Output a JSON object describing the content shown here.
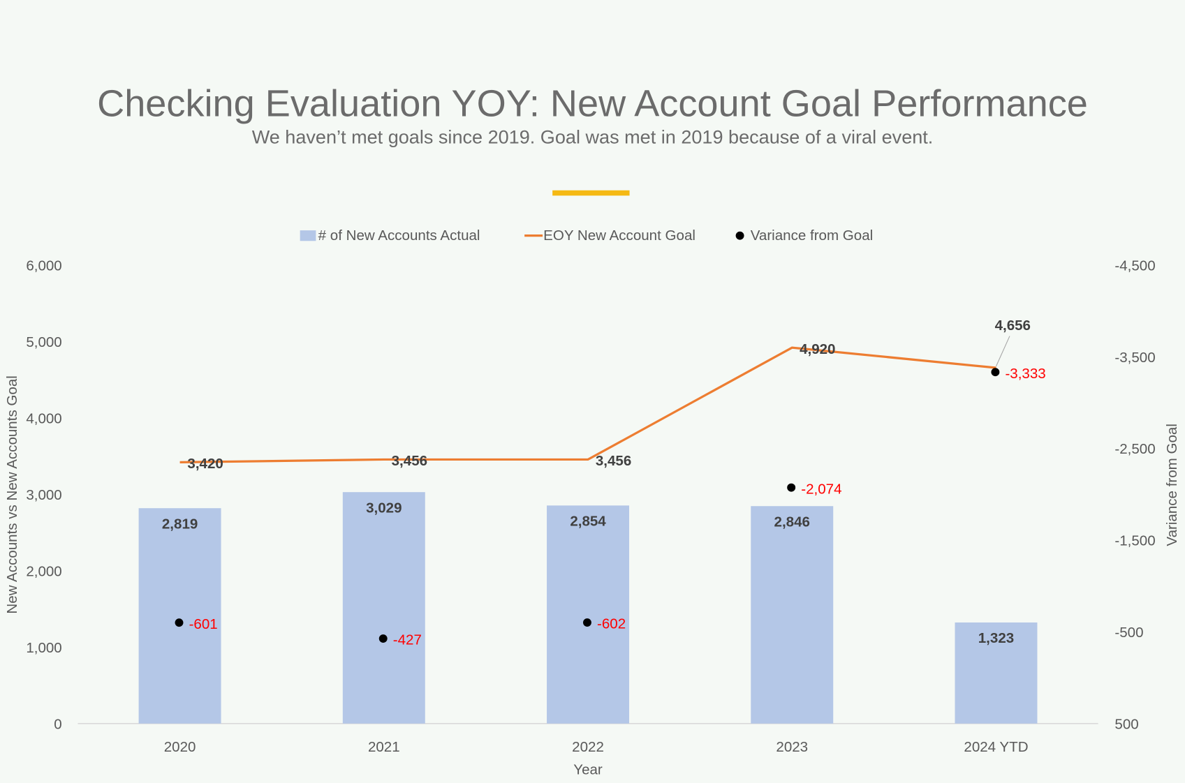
{
  "title": "Checking Evaluation YOY: New Account Goal Performance",
  "subtitle": "We haven’t met goals since 2019. Goal was met in 2019 because of a viral event.",
  "chart_data": {
    "type": "bar",
    "categories": [
      "2020",
      "2021",
      "2022",
      "2023",
      "2024 YTD"
    ],
    "series": [
      {
        "name": "# of New Accounts Actual",
        "type": "bar",
        "axis": "left",
        "color": "#b4c7e7",
        "values": [
          2819,
          3029,
          2854,
          2846,
          1323
        ],
        "labels": [
          "2,819",
          "3,029",
          "2,854",
          "2,846",
          "1,323"
        ]
      },
      {
        "name": "EOY New Account Goal",
        "type": "line",
        "axis": "left",
        "color": "#ed7d31",
        "values": [
          3420,
          3456,
          3456,
          4920,
          4656
        ],
        "labels": [
          "3,420",
          "3,456",
          "3,456",
          "4,920",
          "4,656"
        ]
      },
      {
        "name": "Variance from Goal",
        "type": "scatter",
        "axis": "right",
        "color": "#000000",
        "label_color": "#ff0000",
        "values": [
          -601,
          -427,
          -602,
          -2074,
          -3333
        ],
        "labels": [
          "-601",
          "-427",
          "-602",
          "-2,074",
          "-3,333"
        ]
      }
    ],
    "xlabel": "Year",
    "ylabel": "New Accounts vs New Accounts Goal",
    "y2label": "Variance from Goal",
    "ylim": [
      0,
      6000
    ],
    "yticks": [
      "0",
      "1,000",
      "2,000",
      "3,000",
      "4,000",
      "5,000",
      "6,000"
    ],
    "y2lim": [
      500,
      -4500
    ],
    "y2ticks": [
      "500",
      "-500",
      "-1,500",
      "-2,500",
      "-3,500",
      "-4,500"
    ],
    "legend": "top",
    "grid": false
  }
}
